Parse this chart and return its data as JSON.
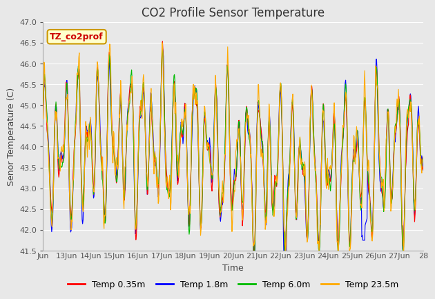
{
  "title": "CO2 Profile Sensor Temperature",
  "ylabel": "Senor Temperature (C)",
  "xlabel": "Time",
  "annotation_text": "TZ_co2prof",
  "annotation_bg": "#ffffcc",
  "annotation_border": "#cc9900",
  "ylim": [
    41.5,
    47.0
  ],
  "series_labels": [
    "Temp 0.35m",
    "Temp 1.8m",
    "Temp 6.0m",
    "Temp 23.5m"
  ],
  "series_colors": [
    "#ff0000",
    "#0000ff",
    "#00bb00",
    "#ffaa00"
  ],
  "series_linewidths": [
    0.8,
    0.8,
    0.8,
    0.8
  ],
  "bg_color": "#e8e8e8",
  "plot_bg_color": "#e8e8e8",
  "grid_color": "#ffffff",
  "n_points": 800,
  "time_start": 12.0,
  "time_end": 28.0,
  "x_ticks": [
    12,
    13,
    14,
    15,
    16,
    17,
    18,
    19,
    20,
    21,
    22,
    23,
    24,
    25,
    26,
    27,
    28
  ],
  "x_tick_labels": [
    "Jun",
    "13Jun",
    "14Jun",
    "15Jun",
    "16Jun",
    "17Jun",
    "18Jun",
    "19Jun",
    "20Jun",
    "21Jun",
    "22Jun",
    "23Jun",
    "24Jun",
    "25Jun",
    "26Jun",
    "27Jun",
    "28"
  ],
  "title_fontsize": 12,
  "tick_fontsize": 8,
  "label_fontsize": 9,
  "legend_fontsize": 9
}
